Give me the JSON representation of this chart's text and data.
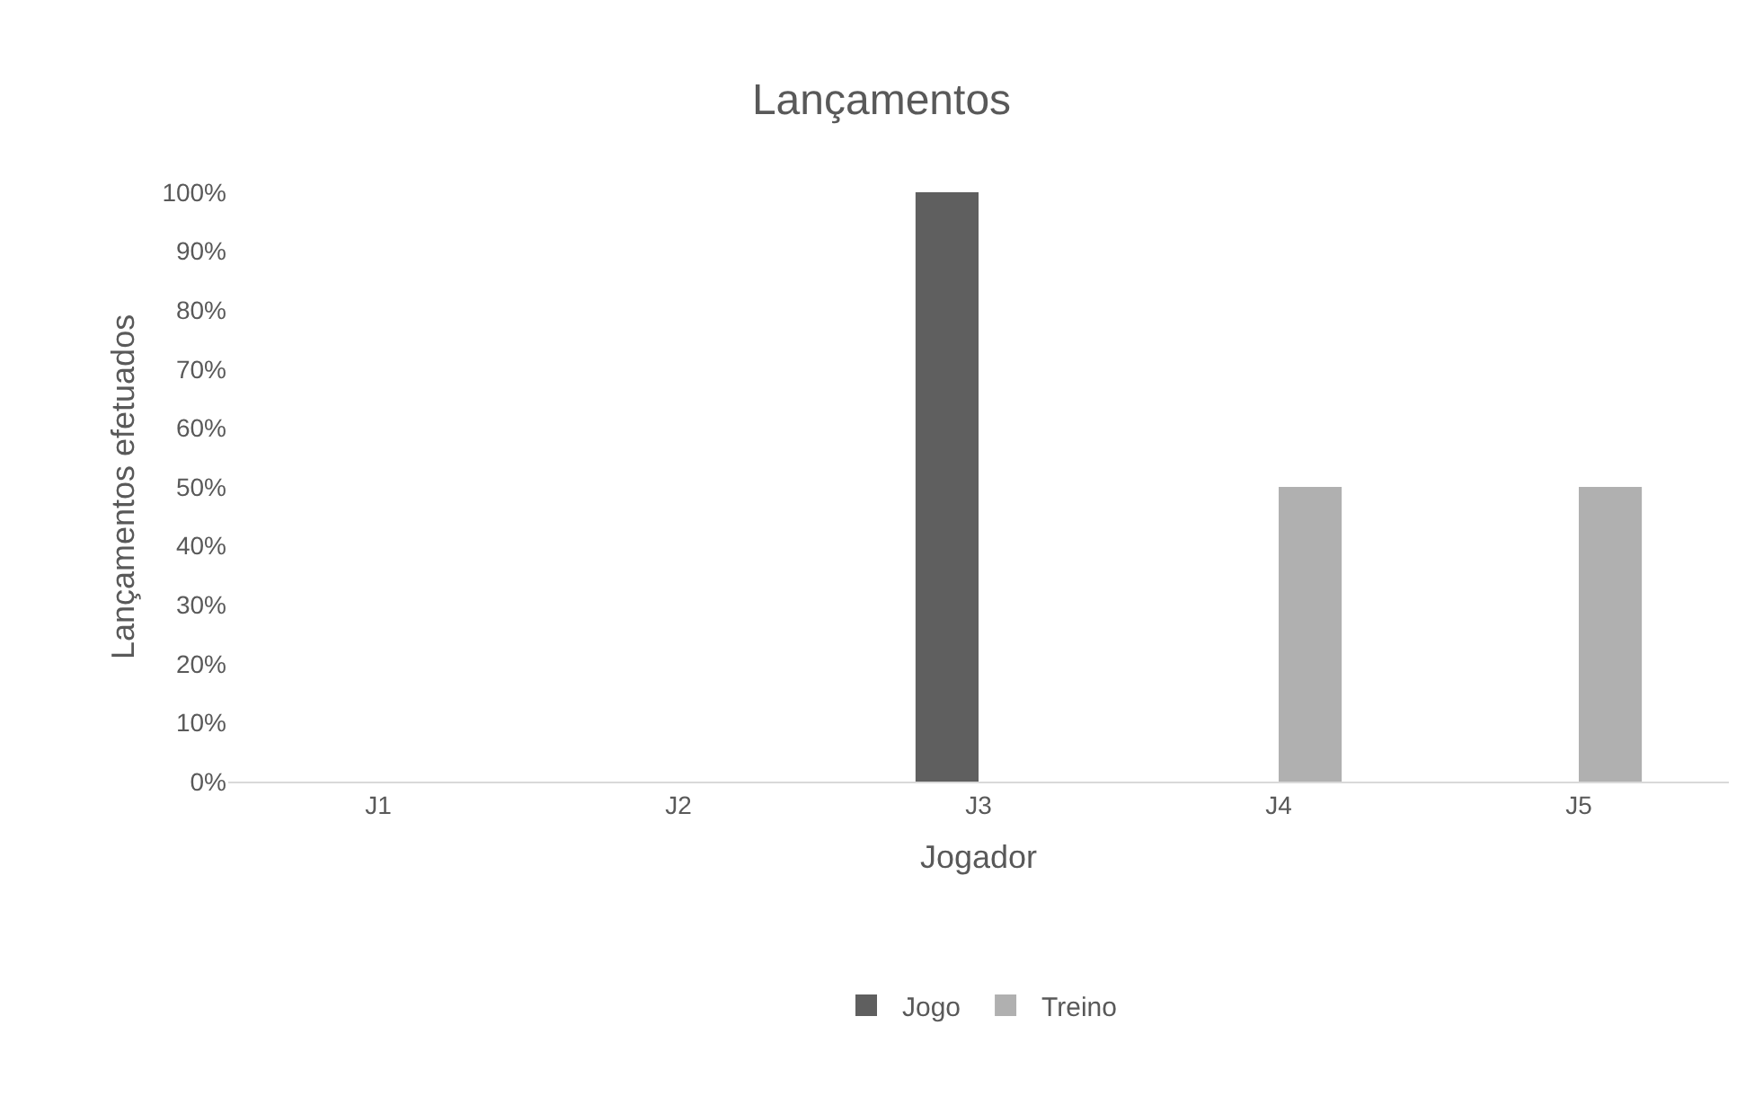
{
  "chart_data": {
    "type": "bar",
    "title": "Lançamentos",
    "xlabel": "Jogador",
    "ylabel": "Lançamentos efetuados",
    "categories": [
      "J1",
      "J2",
      "J3",
      "J4",
      "J5"
    ],
    "series": [
      {
        "name": "Jogo",
        "color": "#5f5f5f",
        "values": [
          0,
          0,
          100,
          0,
          0
        ]
      },
      {
        "name": "Treino",
        "color": "#b0b0b0",
        "values": [
          0,
          0,
          0,
          50,
          50
        ]
      }
    ],
    "ylim": [
      0,
      100
    ],
    "yticks": [
      {
        "value": 0,
        "label": "0%"
      },
      {
        "value": 10,
        "label": "10%"
      },
      {
        "value": 20,
        "label": "20%"
      },
      {
        "value": 30,
        "label": "30%"
      },
      {
        "value": 40,
        "label": "40%"
      },
      {
        "value": 50,
        "label": "50%"
      },
      {
        "value": 60,
        "label": "60%"
      },
      {
        "value": 70,
        "label": "70%"
      },
      {
        "value": 80,
        "label": "80%"
      },
      {
        "value": 90,
        "label": "90%"
      },
      {
        "value": 100,
        "label": "100%"
      }
    ],
    "grid": false,
    "legend": "bottom"
  }
}
